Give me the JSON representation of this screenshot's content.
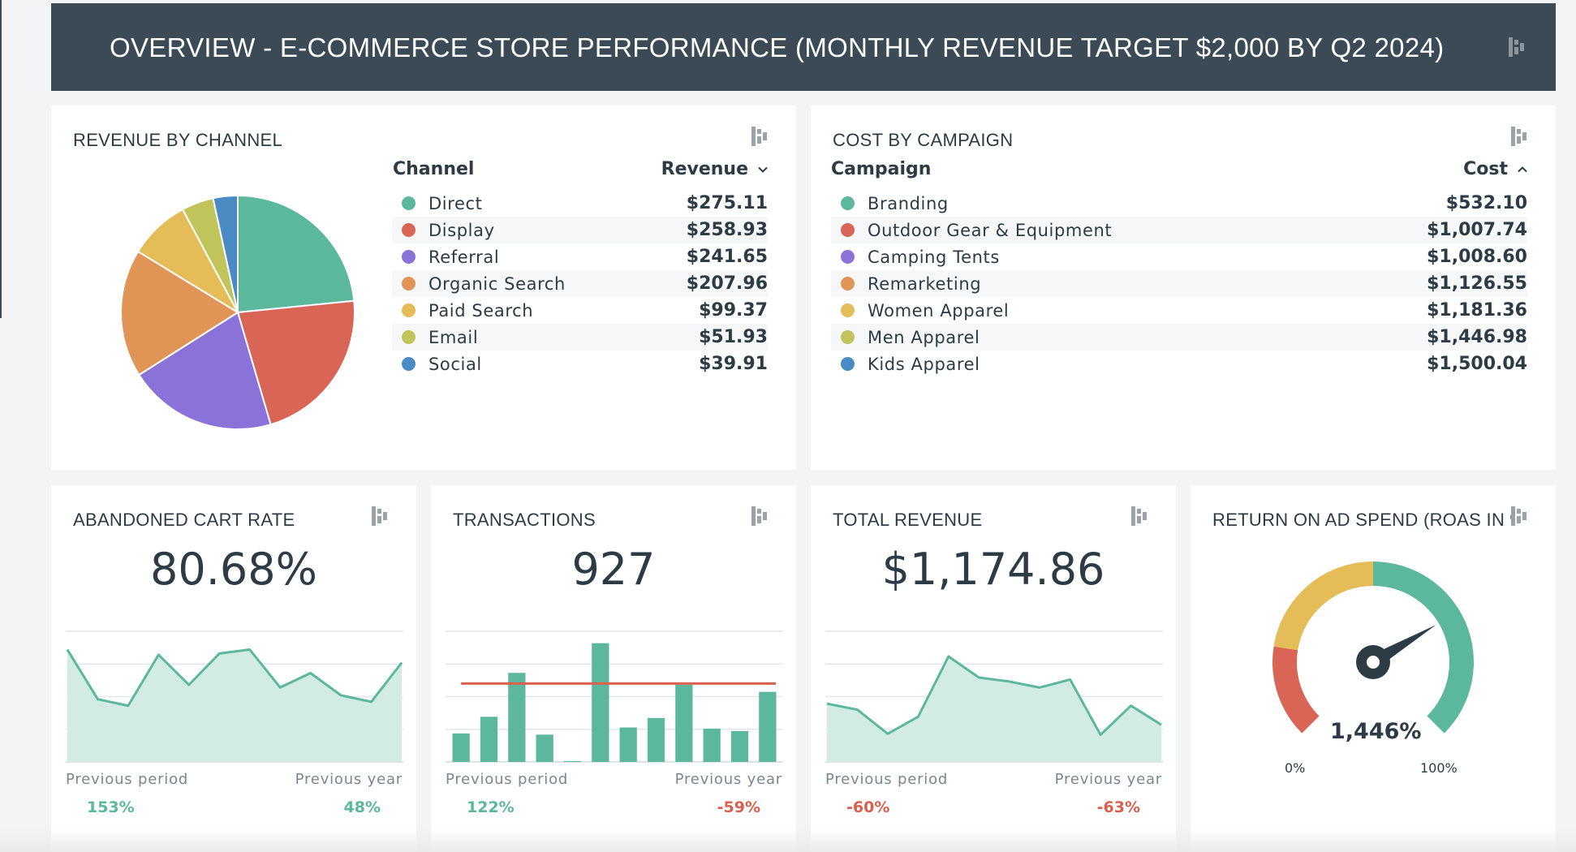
{
  "header": {
    "title": "OVERVIEW - E-COMMERCE STORE PERFORMANCE (MONTHLY REVENUE TARGET $2,000 BY Q2 2024)",
    "logo_icon": "dashboard-logo-icon"
  },
  "revenue_by_channel": {
    "title": "REVENUE BY CHANNEL",
    "col_label": "Channel",
    "col_value": "Revenue",
    "rows": [
      {
        "label": "Direct",
        "value": "$275.11",
        "color": "#5cb89c"
      },
      {
        "label": "Display",
        "value": "$258.93",
        "color": "#d86556"
      },
      {
        "label": "Referral",
        "value": "$241.65",
        "color": "#8b72d8"
      },
      {
        "label": "Organic Search",
        "value": "$207.96",
        "color": "#e09556"
      },
      {
        "label": "Paid Search",
        "value": "$99.37",
        "color": "#e4bc58"
      },
      {
        "label": "Email",
        "value": "$51.93",
        "color": "#c0c45a"
      },
      {
        "label": "Social",
        "value": "$39.91",
        "color": "#4a8bc4"
      }
    ]
  },
  "cost_by_campaign": {
    "title": "COST BY CAMPAIGN",
    "col_label": "Campaign",
    "col_value": "Cost",
    "rows": [
      {
        "label": "Branding",
        "value": "$532.10",
        "color": "#5cb89c"
      },
      {
        "label": "Outdoor Gear & Equipment",
        "value": "$1,007.74",
        "color": "#d86556"
      },
      {
        "label": "Camping Tents",
        "value": "$1,008.60",
        "color": "#8b72d8"
      },
      {
        "label": "Remarketing",
        "value": "$1,126.55",
        "color": "#e09556"
      },
      {
        "label": "Women Apparel",
        "value": "$1,181.36",
        "color": "#e4bc58"
      },
      {
        "label": "Men Apparel",
        "value": "$1,446.98",
        "color": "#c0c45a"
      },
      {
        "label": "Kids Apparel",
        "value": "$1,500.04",
        "color": "#4a8bc4"
      }
    ]
  },
  "abandoned_cart": {
    "title": "ABANDONED CART RATE",
    "value": "80.68%",
    "previous_period_label": "Previous period",
    "previous_period_value": "153%",
    "previous_year_label": "Previous year",
    "previous_year_value": "48%"
  },
  "transactions": {
    "title": "TRANSACTIONS",
    "value": "927",
    "previous_period_label": "Previous period",
    "previous_period_value": "122%",
    "previous_year_label": "Previous year",
    "previous_year_value": "-59%"
  },
  "total_revenue": {
    "title": "TOTAL REVENUE",
    "value": "$1,174.86",
    "previous_period_label": "Previous period",
    "previous_period_value": "-60%",
    "previous_year_label": "Previous year",
    "previous_year_value": "-63%"
  },
  "roas": {
    "title": "RETURN ON AD SPEND (ROAS IN %)",
    "value": "1,446%",
    "min_label": "0%",
    "max_label": "100%"
  },
  "chart_data": [
    {
      "type": "pie",
      "title": "REVENUE BY CHANNEL",
      "categories": [
        "Direct",
        "Display",
        "Referral",
        "Organic Search",
        "Paid Search",
        "Email",
        "Social"
      ],
      "values": [
        275.11,
        258.93,
        241.65,
        207.96,
        99.37,
        51.93,
        39.91
      ],
      "colors": [
        "#5cb89c",
        "#d86556",
        "#8b72d8",
        "#e09556",
        "#e4bc58",
        "#c0c45a",
        "#4a8bc4"
      ]
    },
    {
      "type": "area",
      "title": "ABANDONED CART RATE",
      "values": [
        86,
        48,
        43,
        82,
        59,
        83,
        86,
        57,
        68,
        51,
        46,
        76
      ],
      "ylim": [
        0,
        100
      ]
    },
    {
      "type": "bar",
      "title": "TRANSACTIONS",
      "values": [
        24,
        38,
        75,
        23,
        0,
        100,
        29,
        37,
        65,
        28,
        26,
        59
      ],
      "reference_line": 66,
      "ylim": [
        0,
        110
      ]
    },
    {
      "type": "area",
      "title": "TOTAL REVENUE",
      "values": [
        58,
        52,
        28,
        45,
        105,
        84,
        80,
        74,
        82,
        27,
        56,
        37
      ],
      "ylim": [
        0,
        130
      ]
    },
    {
      "type": "gauge",
      "title": "RETURN ON AD SPEND (ROAS IN %)",
      "value": 1446,
      "range": [
        0,
        100
      ],
      "bands": [
        {
          "from": 0,
          "to": 20,
          "color": "#d86556"
        },
        {
          "from": 20,
          "to": 50,
          "color": "#e4bc58"
        },
        {
          "from": 50,
          "to": 100,
          "color": "#5cb89c"
        }
      ],
      "needle_fraction": 0.72
    }
  ]
}
